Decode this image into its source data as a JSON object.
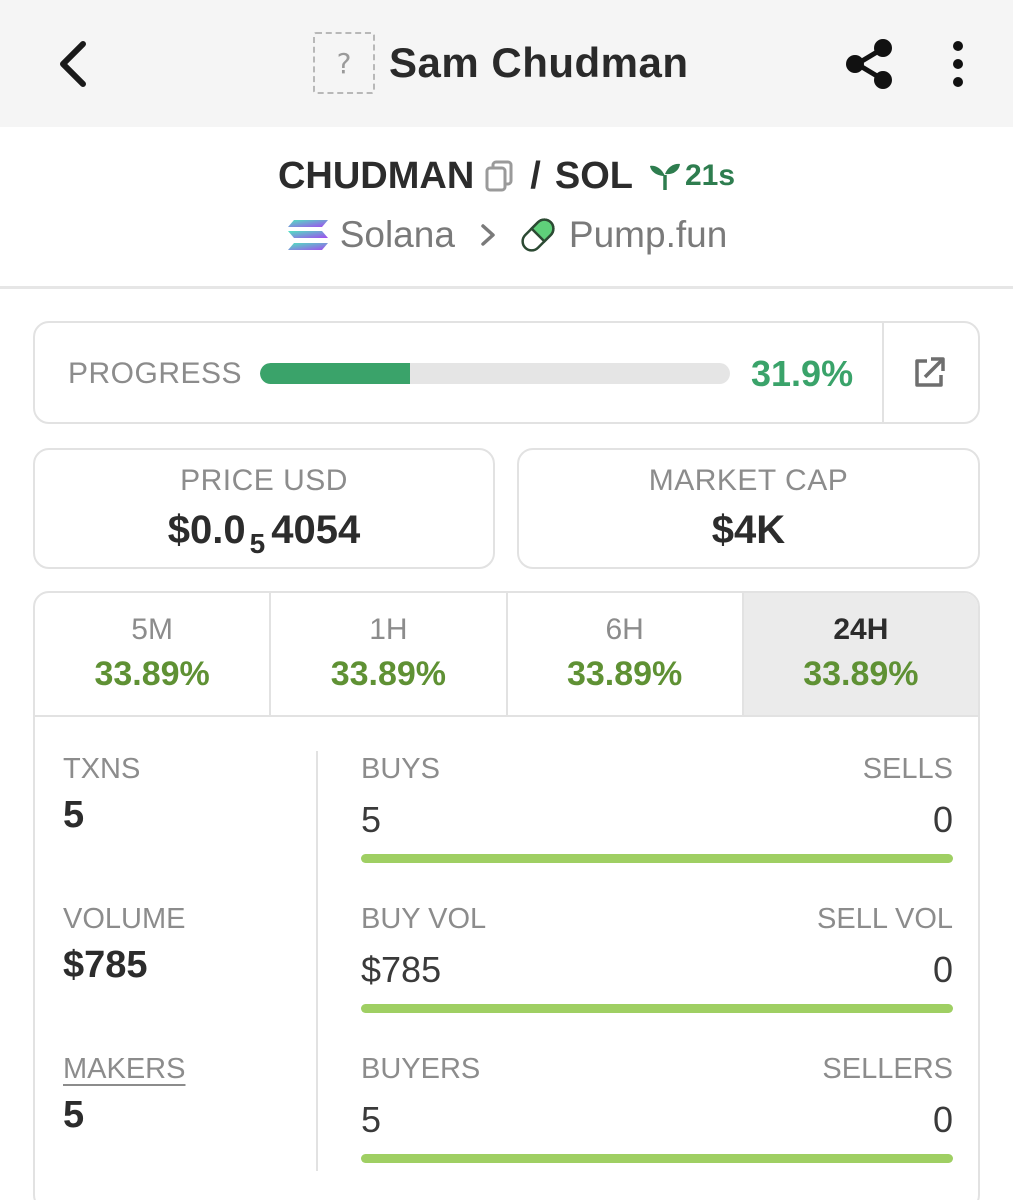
{
  "header": {
    "token_placeholder": "?",
    "title": "Sam Chudman"
  },
  "pair": {
    "base": "CHUDMAN",
    "separator": "/",
    "quote": "SOL",
    "age": "21s"
  },
  "chain": {
    "network": "Solana",
    "dex": "Pump.fun"
  },
  "progress": {
    "label": "PROGRESS",
    "value_text": "31.9%",
    "fraction": 0.319
  },
  "price": {
    "label": "PRICE USD",
    "prefix": "$0.0",
    "zeros": "5",
    "digits": "4054"
  },
  "market_cap": {
    "label": "MARKET CAP",
    "value": "$4K"
  },
  "timeframes": [
    {
      "label": "5M",
      "change": "33.89%"
    },
    {
      "label": "1H",
      "change": "33.89%"
    },
    {
      "label": "6H",
      "change": "33.89%"
    },
    {
      "label": "24H",
      "change": "33.89%",
      "active": true
    }
  ],
  "stats": {
    "txns": {
      "label": "TXNS",
      "value": "5"
    },
    "volume": {
      "label": "VOLUME",
      "value": "$785"
    },
    "makers": {
      "label": "MAKERS",
      "value": "5"
    }
  },
  "splits": {
    "trades": {
      "left_label": "BUYS",
      "right_label": "SELLS",
      "left_value": "5",
      "right_value": "0",
      "buy_fraction": 1.0
    },
    "volume": {
      "left_label": "BUY VOL",
      "right_label": "SELL VOL",
      "left_value": "$785",
      "right_value": "0",
      "buy_fraction": 1.0
    },
    "traders": {
      "left_label": "BUYERS",
      "right_label": "SELLERS",
      "left_value": "5",
      "right_value": "0",
      "buy_fraction": 1.0
    }
  },
  "colors": {
    "progress_green": "#3aa36a",
    "change_green": "#5f9134",
    "buy_bar": "#9fcf63",
    "age_green": "#2e7d4f"
  }
}
